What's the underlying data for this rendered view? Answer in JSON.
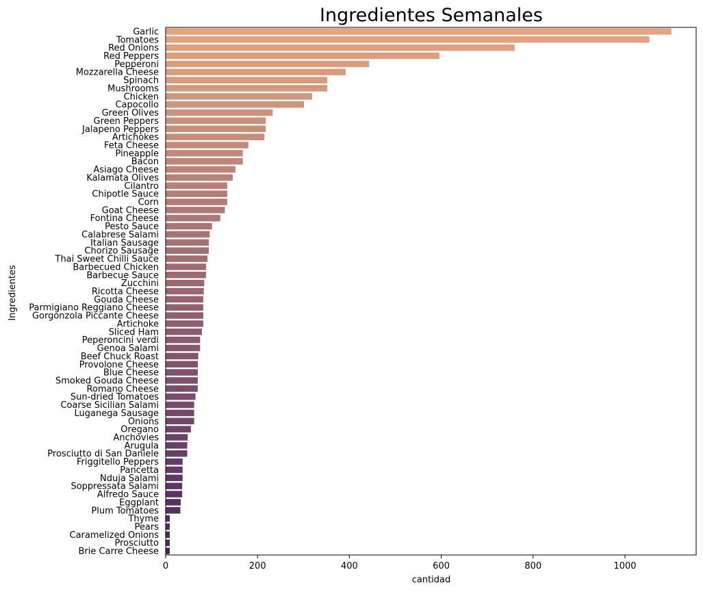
{
  "chart_data": {
    "type": "bar",
    "orientation": "horizontal",
    "title": "Ingredientes Semanales",
    "xlabel": "cantidad",
    "ylabel": "Ingredientes",
    "xlim": [
      0,
      1155
    ],
    "xticks": [
      "0",
      "200",
      "400",
      "600",
      "800",
      "1000"
    ],
    "grid": false,
    "legend": "none",
    "palette": "flare",
    "color_start": "#e4a680",
    "color_end": "#4a2660",
    "categories": [
      "Garlic",
      "Tomatoes",
      "Red Onions",
      "Red Peppers",
      "Pepperoni",
      "Mozzarella Cheese",
      "Spinach",
      "Mushrooms",
      "Chicken",
      "Capocollo",
      "Green Olives",
      "Green Peppers",
      "Jalapeno Peppers",
      "Artichokes",
      "Feta Cheese",
      "Pineapple",
      "Bacon",
      "Asiago Cheese",
      "Kalamata Olives",
      "Cilantro",
      "Chipotle Sauce",
      "Corn",
      "Goat Cheese",
      "Fontina Cheese",
      "Pesto Sauce",
      "Calabrese Salami",
      "Italian Sausage",
      "Chorizo Sausage",
      "Thai Sweet Chilli Sauce",
      "Barbecued Chicken",
      "Barbecue Sauce",
      "Zucchini",
      "Ricotta Cheese",
      "Gouda Cheese",
      "Parmigiano Reggiano Cheese",
      "Gorgonzola Piccante Cheese",
      "Artichoke",
      "Sliced Ham",
      "Peperoncini verdi",
      "Genoa Salami",
      "Beef Chuck Roast",
      "Provolone Cheese",
      "Blue Cheese",
      "Smoked Gouda Cheese",
      "Romano Cheese",
      "Sun-dried Tomatoes",
      "Coarse Sicilian Salami",
      "Luganega Sausage",
      "Onions",
      "Oregano",
      "Anchovies",
      "Arugula",
      "Prosciutto di San Daniele",
      "Friggitello Peppers",
      "Pancetta",
      "Nduja Salami",
      "Soppressata Salami",
      "Alfredo Sauce",
      "Eggplant",
      "Plum Tomatoes",
      "Thyme",
      "Pears",
      "Caramelized Onions",
      "Prosciutto",
      "Brie Carre Cheese"
    ],
    "values": [
      1101,
      1053,
      760,
      596,
      443,
      392,
      352,
      352,
      319,
      301,
      233,
      218,
      218,
      215,
      180,
      168,
      168,
      152,
      146,
      134,
      134,
      134,
      129,
      119,
      101,
      96,
      94,
      94,
      91,
      88,
      88,
      84,
      83,
      82,
      82,
      82,
      82,
      79,
      75,
      75,
      71,
      70,
      70,
      70,
      70,
      65,
      62,
      62,
      62,
      55,
      48,
      47,
      47,
      37,
      37,
      37,
      36,
      36,
      33,
      32,
      9,
      9,
      9,
      9,
      9
    ]
  }
}
